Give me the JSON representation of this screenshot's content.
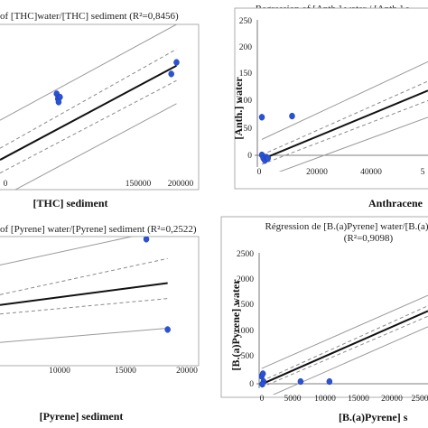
{
  "chart_data": [
    {
      "type": "scatter",
      "title": "of [THC]water/[THC] sediment (R²=0,8456)",
      "xlabel": "[THC] sediment",
      "ylabel": "",
      "x_ticks": [
        "0",
        "150000",
        "200000"
      ],
      "y_ticks": [],
      "xlim": [
        -85000,
        220000
      ],
      "ylim": [
        0,
        100
      ],
      "points": [
        [
          2000,
          58
        ],
        [
          4000,
          55
        ],
        [
          7000,
          56
        ],
        [
          5000,
          53
        ],
        [
          178000,
          70
        ],
        [
          186000,
          77
        ]
      ],
      "fit": [
        [
          -85000,
          18
        ],
        [
          186000,
          75
        ]
      ],
      "ci_inner": [
        [
          [
            -85000,
            25
          ],
          [
            186000,
            85
          ]
        ],
        [
          [
            -85000,
            10
          ],
          [
            186000,
            66
          ]
        ]
      ],
      "pi_outer": [
        [
          [
            -85000,
            42
          ],
          [
            186000,
            100
          ]
        ],
        [
          [
            -85000,
            -5
          ],
          [
            186000,
            52
          ]
        ]
      ]
    },
    {
      "type": "scatter",
      "title": "Regression of [Anth.] water / [Anth.] s",
      "xlabel": "Anthracene",
      "ylabel": "[Anth.] water",
      "x_ticks": [
        "0",
        "20000",
        "40000",
        "5"
      ],
      "y_ticks": [
        "0",
        "50",
        "100",
        "150",
        "200",
        "250"
      ],
      "xlim": [
        -1500,
        55000
      ],
      "ylim": [
        -18,
        262
      ],
      "points": [
        [
          0,
          80
        ],
        [
          0,
          12
        ],
        [
          500,
          6
        ],
        [
          1000,
          2
        ],
        [
          1500,
          8
        ],
        [
          2000,
          6
        ],
        [
          10000,
          82
        ]
      ],
      "fit": [
        [
          0,
          4
        ],
        [
          55000,
          128
        ]
      ],
      "ci_inner": [
        [
          [
            0,
            12
          ],
          [
            55000,
            145
          ]
        ],
        [
          [
            0,
            -5
          ],
          [
            55000,
            110
          ]
        ]
      ],
      "pi_outer": [
        [
          [
            0,
            40
          ],
          [
            55000,
            180
          ]
        ],
        [
          [
            0,
            -30
          ],
          [
            55000,
            80
          ]
        ]
      ]
    },
    {
      "type": "scatter",
      "title": "of [Pyrene] water/[Pyrene] sediment (R²=0,2522)",
      "xlabel": "[Pyrene] sediment",
      "ylabel": "",
      "x_ticks": [
        "10000",
        "15000",
        "20000"
      ],
      "y_ticks": [],
      "xlim": [
        0,
        20500
      ],
      "ylim": [
        0,
        100
      ],
      "points": [
        [
          15100,
          98
        ],
        [
          17300,
          28
        ]
      ],
      "fit": [
        [
          0,
          47
        ],
        [
          17300,
          64
        ]
      ],
      "ci_inner": [
        [
          [
            0,
            55
          ],
          [
            17300,
            83
          ]
        ],
        [
          [
            0,
            40
          ],
          [
            17300,
            52
          ]
        ]
      ],
      "pi_outer": [
        [
          [
            0,
            78
          ],
          [
            17300,
            106
          ]
        ],
        [
          [
            0,
            18
          ],
          [
            17300,
            29
          ]
        ]
      ]
    },
    {
      "type": "scatter",
      "title": "Régression de [B.(a)Pyrene] water/[B.(a)",
      "subtitle": "(R²=0,9098)",
      "xlabel": "[B.(a)Pyrene] s",
      "ylabel": "[B.(a)Pyrene] water",
      "x_ticks": [
        "0",
        "5000",
        "10000",
        "15000",
        "20000",
        "2500"
      ],
      "y_ticks": [
        "0",
        "500",
        "1000",
        "1500",
        "2000",
        "2500"
      ],
      "xlim": [
        -400,
        26500
      ],
      "ylim": [
        -200,
        2600
      ],
      "points": [
        [
          0,
          150
        ],
        [
          200,
          200
        ],
        [
          300,
          50
        ],
        [
          100,
          0
        ],
        [
          6200,
          50
        ],
        [
          10800,
          50
        ]
      ],
      "fit": [
        [
          0,
          0
        ],
        [
          26500,
          1400
        ]
      ],
      "ci_inner": [
        [
          [
            0,
            60
          ],
          [
            26500,
            1500
          ]
        ],
        [
          [
            0,
            -60
          ],
          [
            26500,
            1300
          ]
        ]
      ],
      "pi_outer": [
        [
          [
            0,
            300
          ],
          [
            26500,
            1700
          ]
        ],
        [
          [
            0,
            -300
          ],
          [
            26500,
            1100
          ]
        ]
      ]
    }
  ]
}
